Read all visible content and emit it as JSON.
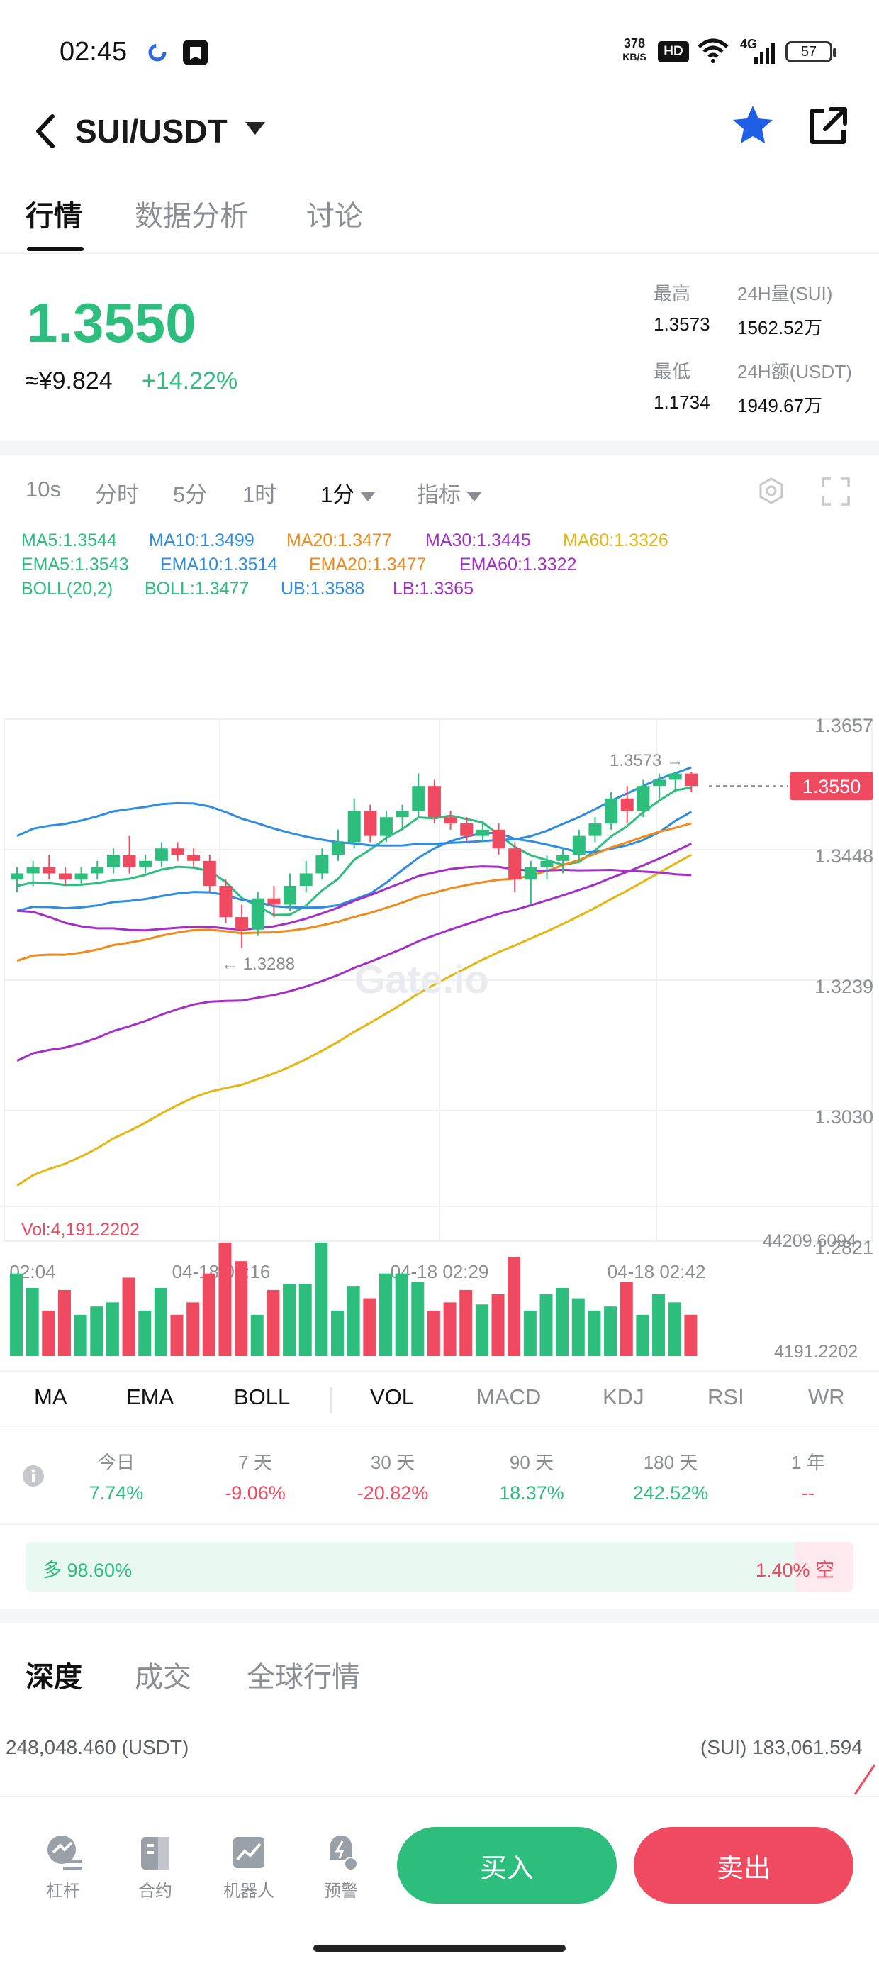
{
  "status_bar": {
    "time": "02:45",
    "net_speed_value": "378",
    "net_speed_unit": "KB/S",
    "hd_badge": "HD",
    "signal_label": "4G",
    "battery": "57"
  },
  "header": {
    "pair": "SUI/USDT"
  },
  "main_tabs": [
    "行情",
    "数据分析",
    "讨论"
  ],
  "price": {
    "last": "1.3550",
    "cny": "≈¥9.824",
    "change": "+14.22%"
  },
  "stats": {
    "high_label": "最高",
    "high_value": "1.3573",
    "vol_label": "24H量(SUI)",
    "vol_value": "1562.52万",
    "low_label": "最低",
    "low_value": "1.1734",
    "amount_label": "24H额(USDT)",
    "amount_value": "1949.67万"
  },
  "intervals": [
    "10s",
    "分时",
    "5分",
    "1时",
    "1分",
    "指标"
  ],
  "indicators": {
    "row1": [
      "MA5:1.3544",
      "MA10:1.3499",
      "MA20:1.3477",
      "MA30:1.3445",
      "MA60:1.3326"
    ],
    "row2": [
      "EMA5:1.3543",
      "EMA10:1.3514",
      "EMA20:1.3477",
      "EMA60:1.3322"
    ],
    "row3": [
      "BOLL(20,2)",
      "BOLL:1.3477",
      "UB:1.3588",
      "LB:1.3365"
    ]
  },
  "colors": {
    "up": "#2dbe7e",
    "down": "#ef4a5f",
    "ma5": "#2dbe7e",
    "ma10": "#2e8de0",
    "ma20": "#ef8a1b",
    "ma30": "#a42fc6",
    "ma60": "#e5b611"
  },
  "chart_data": {
    "type": "candlestick",
    "y_ticks": [
      "1.3657",
      "1.3448",
      "1.3239",
      "1.3030",
      "1.2821"
    ],
    "ylim": [
      1.2821,
      1.3657
    ],
    "x_ticks": [
      "02:04",
      "04-18 02:16",
      "04-18 02:29",
      "04-18 02:42"
    ],
    "last_price_tag": "1.3550",
    "high_marker": "1.3573 →",
    "low_marker": "← 1.3288",
    "candles": [
      [
        1.34,
        1.342,
        1.338,
        1.341
      ],
      [
        1.341,
        1.343,
        1.339,
        1.342
      ],
      [
        1.342,
        1.344,
        1.34,
        1.341
      ],
      [
        1.341,
        1.342,
        1.339,
        1.34
      ],
      [
        1.34,
        1.342,
        1.339,
        1.341
      ],
      [
        1.341,
        1.343,
        1.34,
        1.342
      ],
      [
        1.342,
        1.345,
        1.341,
        1.344
      ],
      [
        1.344,
        1.347,
        1.341,
        1.342
      ],
      [
        1.342,
        1.344,
        1.341,
        1.343
      ],
      [
        1.343,
        1.346,
        1.342,
        1.345
      ],
      [
        1.345,
        1.346,
        1.343,
        1.344
      ],
      [
        1.344,
        1.345,
        1.342,
        1.343
      ],
      [
        1.343,
        1.344,
        1.338,
        1.339
      ],
      [
        1.339,
        1.34,
        1.333,
        1.334
      ],
      [
        1.334,
        1.336,
        1.329,
        1.332
      ],
      [
        1.332,
        1.338,
        1.331,
        1.337
      ],
      [
        1.337,
        1.339,
        1.334,
        1.336
      ],
      [
        1.336,
        1.341,
        1.335,
        1.339
      ],
      [
        1.339,
        1.343,
        1.338,
        1.341
      ],
      [
        1.341,
        1.345,
        1.34,
        1.344
      ],
      [
        1.344,
        1.348,
        1.343,
        1.346
      ],
      [
        1.346,
        1.353,
        1.345,
        1.351
      ],
      [
        1.351,
        1.352,
        1.346,
        1.347
      ],
      [
        1.347,
        1.351,
        1.346,
        1.35
      ],
      [
        1.35,
        1.352,
        1.348,
        1.351
      ],
      [
        1.351,
        1.357,
        1.35,
        1.355
      ],
      [
        1.355,
        1.356,
        1.349,
        1.35
      ],
      [
        1.35,
        1.351,
        1.348,
        1.349
      ],
      [
        1.349,
        1.35,
        1.346,
        1.347
      ],
      [
        1.347,
        1.349,
        1.346,
        1.348
      ],
      [
        1.348,
        1.349,
        1.344,
        1.345
      ],
      [
        1.345,
        1.346,
        1.338,
        1.34
      ],
      [
        1.34,
        1.343,
        1.336,
        1.342
      ],
      [
        1.342,
        1.344,
        1.34,
        1.343
      ],
      [
        1.343,
        1.345,
        1.341,
        1.344
      ],
      [
        1.344,
        1.348,
        1.343,
        1.347
      ],
      [
        1.347,
        1.35,
        1.346,
        1.349
      ],
      [
        1.349,
        1.354,
        1.348,
        1.353
      ],
      [
        1.353,
        1.355,
        1.349,
        1.351
      ],
      [
        1.351,
        1.356,
        1.35,
        1.355
      ],
      [
        1.355,
        1.357,
        1.353,
        1.356
      ],
      [
        1.356,
        1.3573,
        1.354,
        1.357
      ],
      [
        1.357,
        1.3573,
        1.354,
        1.355
      ]
    ],
    "volume": {
      "label": "Vol:4,191.2202",
      "max_label": "44209.6094",
      "min_label": "4191.2202",
      "values": [
        40,
        33,
        22,
        32,
        20,
        24,
        26,
        38,
        22,
        33,
        20,
        26,
        40,
        55,
        46,
        20,
        32,
        35,
        35,
        55,
        22,
        34,
        28,
        40,
        40,
        36,
        22,
        26,
        32,
        25,
        30,
        48,
        22,
        30,
        33,
        28,
        22,
        24,
        36,
        20,
        30,
        26,
        20
      ]
    }
  },
  "indicator_tabs": [
    "MA",
    "EMA",
    "BOLL",
    "VOL",
    "MACD",
    "KDJ",
    "RSI",
    "WR"
  ],
  "performance": [
    {
      "label": "今日",
      "value": "7.74%"
    },
    {
      "label": "7 天",
      "value": "-9.06%"
    },
    {
      "label": "30 天",
      "value": "-20.82%"
    },
    {
      "label": "90 天",
      "value": "18.37%"
    },
    {
      "label": "180 天",
      "value": "242.52%"
    },
    {
      "label": "1 年",
      "value": "--"
    }
  ],
  "long_short": {
    "long": "多 98.60%",
    "short": "1.40% 空",
    "long_fraction": 0.986
  },
  "depth_tabs": [
    "深度",
    "成交",
    "全球行情"
  ],
  "depth": {
    "left": "248,048.460 (USDT)",
    "right": "(SUI) 183,061.594"
  },
  "bottom_nav": [
    "杠杆",
    "合约",
    "机器人",
    "预警"
  ],
  "actions": {
    "buy": "买入",
    "sell": "卖出"
  }
}
